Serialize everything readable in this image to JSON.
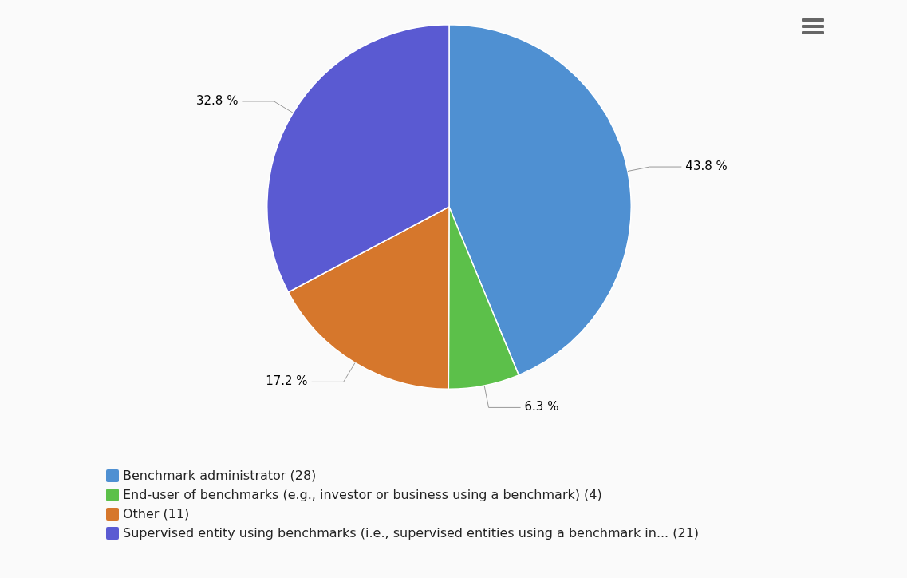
{
  "chart_data": {
    "type": "pie",
    "categories": [
      "Benchmark administrator (28)",
      "End-user of benchmarks (e.g., investor or business using a benchmark) (4)",
      "Other (11)",
      "Supervised entity using benchmarks (i.e., supervised entities using a benchmark in... (21)"
    ],
    "values": [
      43.8,
      6.3,
      17.2,
      32.8
    ],
    "colors": [
      "#4f90d2",
      "#5cc04a",
      "#d6772c",
      "#5a5ad2"
    ],
    "value_labels": [
      "43.8 %",
      "6.3 %",
      "17.2 %",
      "32.8 %"
    ],
    "legend": "bottom"
  }
}
